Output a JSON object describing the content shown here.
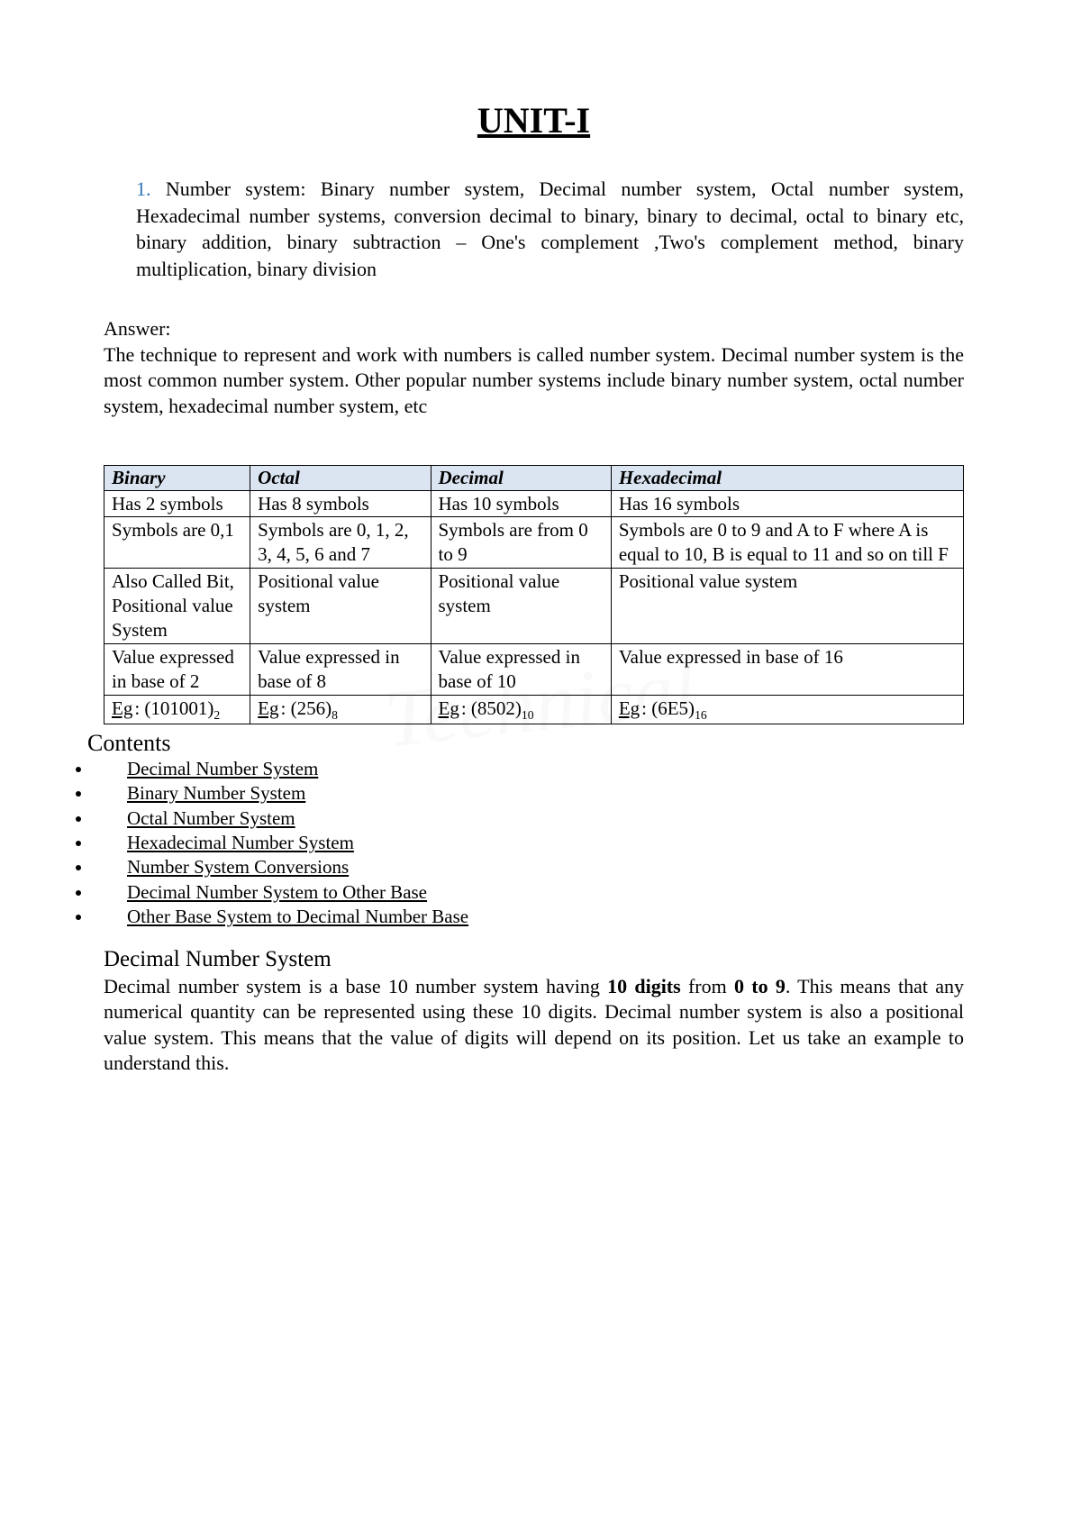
{
  "title": "UNIT-I",
  "list_number": "1.",
  "intro": "Number system: Binary number system, Decimal number system, Octal number system, Hexadecimal number systems, conversion decimal to binary, binary to decimal, octal to binary etc, binary addition, binary subtraction – One's complement ,Two's complement method, binary multiplication, binary division",
  "answer_label": "Answer:",
  "answer_body": "The technique to represent and work with numbers is called number system. Decimal number system is the most common number system. Other popular number systems include binary number system, octal number system, hexadecimal number system, etc",
  "table": {
    "headers": [
      "Binary",
      "Octal",
      "Decimal",
      "Hexadecimal"
    ],
    "rows": [
      [
        "Has 2 symbols",
        "Has 8 symbols",
        "Has 10 symbols",
        "Has 16 symbols"
      ],
      [
        "Symbols are 0,1",
        "Symbols are 0, 1, 2, 3, 4, 5, 6 and 7",
        "Symbols are from 0 to 9",
        "Symbols are 0 to 9 and A to F where A is equal to 10, B is equal to 11 and so on till F"
      ],
      [
        "Also Called Bit, Positional value System",
        "Positional value system",
        "Positional value system",
        "Positional value system"
      ],
      [
        "Value expressed in base of 2",
        "Value expressed in base of 8",
        "Value expressed in base of 10",
        "Value expressed in base of 16"
      ]
    ],
    "examples": {
      "eg_label": "Eg",
      "binary": {
        "value": ": (101001)",
        "sub": "2"
      },
      "octal": {
        "value": ": (256)",
        "sub": "8"
      },
      "decimal": {
        "value": ": (8502)",
        "sub": "10"
      },
      "hex": {
        "value": ": (6E5)",
        "sub": "16"
      }
    }
  },
  "contents_heading": "Contents",
  "contents": [
    "Decimal Number System ",
    "Binary Number System",
    "Octal Number System",
    "Hexadecimal Number System ",
    "Number System Conversions",
    "Decimal Number System to Other Base ",
    "Other Base System to Decimal Number Base "
  ],
  "section": {
    "heading": "Decimal Number System",
    "body_pre": "Decimal number system is a base 10 number system having ",
    "bold1": "10 digits",
    "body_mid": " from ",
    "bold2": "0 to 9",
    "body_post": ". This means that any numerical quantity can be represented using these 10 digits. Decimal number system is also a positional value system. This means that the value of digits will depend on its position. Let us take an example to understand this."
  },
  "watermark": "Technical",
  "colors": {
    "accent": "#2e74b5",
    "table_header_bg": "#dbe5f1",
    "text": "#000000",
    "background": "#ffffff"
  }
}
